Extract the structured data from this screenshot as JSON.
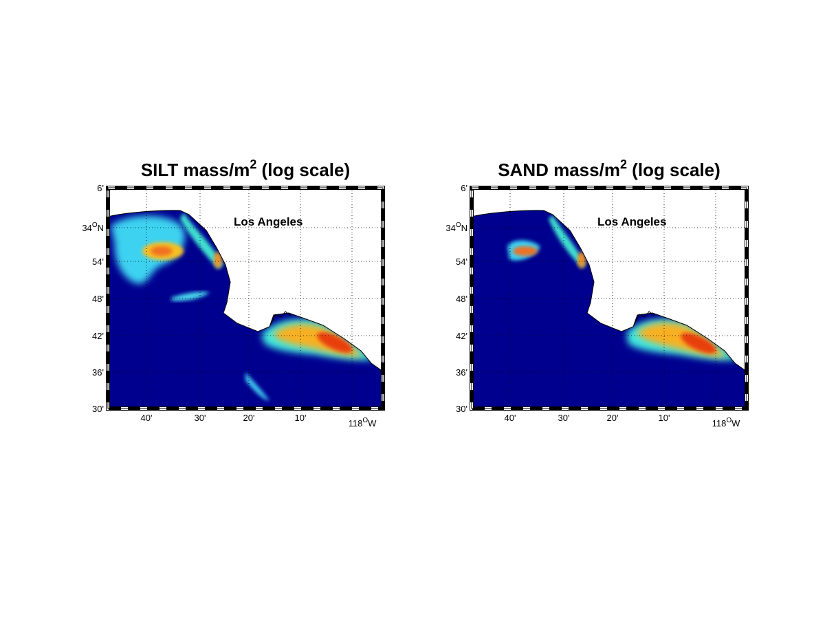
{
  "maps": [
    {
      "title": {
        "text": "SILT mass/m",
        "superscript": "2",
        "suffix": " (log scale)"
      },
      "label": "Los Angeles",
      "yticks": [
        {
          "text": "6'"
        },
        {
          "text": "34",
          "superscript": "O",
          "suffix": "N"
        },
        {
          "text": "54'"
        },
        {
          "text": "48'"
        },
        {
          "text": "42'"
        },
        {
          "text": "36'"
        },
        {
          "text": "30'"
        }
      ],
      "xticks": [
        {
          "text": "40'"
        },
        {
          "text": "30'"
        },
        {
          "text": "20'"
        },
        {
          "text": "10'"
        },
        {
          "text": "118",
          "superscript": "O",
          "suffix": "W"
        }
      ]
    },
    {
      "title": {
        "text": "SAND mass/m",
        "superscript": "2",
        "suffix": " (log scale)"
      },
      "label": "Los Angeles",
      "yticks": [
        {
          "text": "6'"
        },
        {
          "text": "34",
          "superscript": "O",
          "suffix": "N"
        },
        {
          "text": "54'"
        },
        {
          "text": "48'"
        },
        {
          "text": "42'"
        },
        {
          "text": "36'"
        },
        {
          "text": "30'"
        }
      ],
      "xticks": [
        {
          "text": "40'"
        },
        {
          "text": "30'"
        },
        {
          "text": "20'"
        },
        {
          "text": "10'"
        },
        {
          "text": "118",
          "superscript": "O",
          "suffix": "W"
        }
      ]
    }
  ]
}
